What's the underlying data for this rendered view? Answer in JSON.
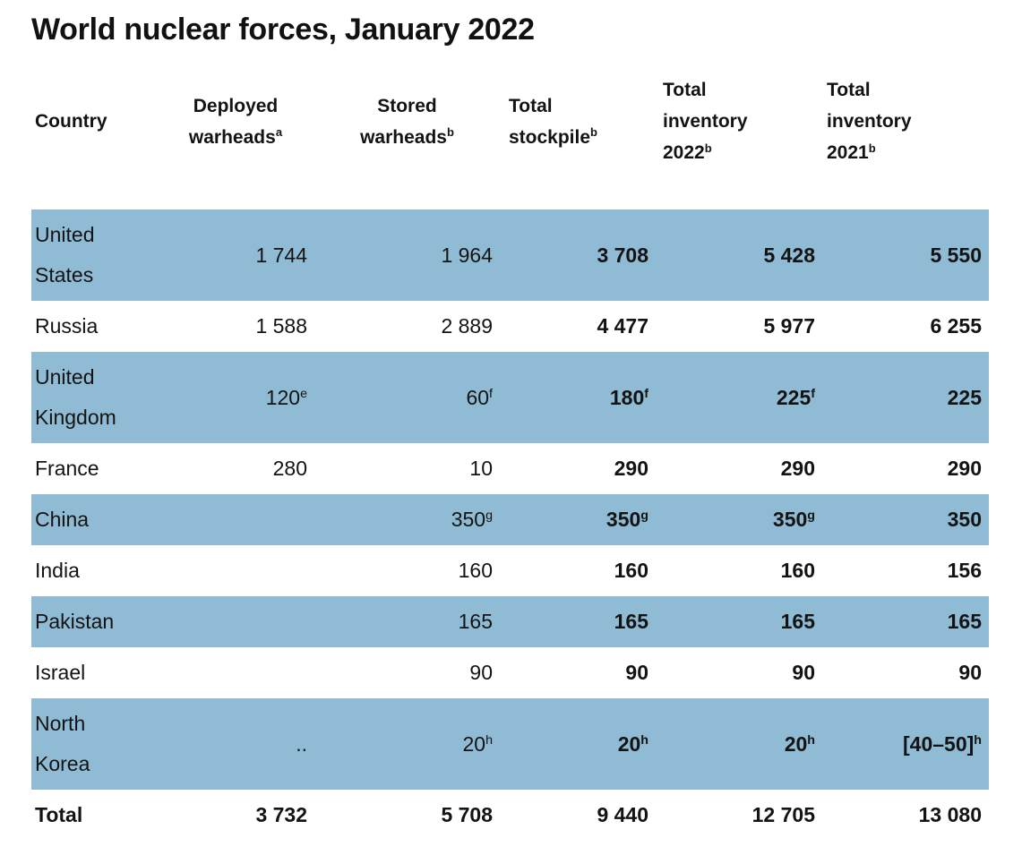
{
  "title": "World nuclear forces, January 2022",
  "colors": {
    "row_highlight": "#8fbcd4",
    "text": "#131313",
    "background": "#ffffff"
  },
  "table": {
    "columns": [
      "Country",
      "Deployed\nwarheads^a^",
      "Stored\nwarheads^b^",
      "Total\nstockpile^b^",
      "Total\ninventory\n2022^b^",
      "Total\ninventory\n2021^b^"
    ],
    "rows": [
      {
        "country": "United\nStates",
        "cells": [
          "1 744",
          "1 964",
          "3 708",
          "5 428",
          "5 550"
        ]
      },
      {
        "country": "Russia",
        "cells": [
          "1 588",
          "2 889",
          "4 477",
          "5 977",
          "6 255"
        ]
      },
      {
        "country": "United\nKingdom",
        "cells": [
          "120^e^",
          "60^f^",
          "180^f^",
          "225^f^",
          "225"
        ]
      },
      {
        "country": "France",
        "cells": [
          "280",
          "10",
          "290",
          "290",
          "290"
        ]
      },
      {
        "country": "China",
        "cells": [
          "",
          "350^g^",
          "350^g^",
          "350^g^",
          "350"
        ]
      },
      {
        "country": "India",
        "cells": [
          "",
          "160",
          "160",
          "160",
          "156"
        ]
      },
      {
        "country": "Pakistan",
        "cells": [
          "",
          "165",
          "165",
          "165",
          "165"
        ]
      },
      {
        "country": "Israel",
        "cells": [
          "",
          "90",
          "90",
          "90",
          "90"
        ]
      },
      {
        "country": "North\nKorea",
        "cells": [
          "..",
          "20^h^",
          "20^h^",
          "20^h^",
          "[40–50]^h^"
        ]
      },
      {
        "country": "Total",
        "cells": [
          "3 732",
          "5 708",
          "9 440",
          "12 705",
          "13 080"
        ],
        "is_total": true
      }
    ]
  },
  "chart_data": {
    "type": "table",
    "title": "World nuclear forces, January 2022",
    "columns": [
      "Country",
      "Deployed warheads (a)",
      "Stored warheads (b)",
      "Total stockpile (b)",
      "Total inventory 2022 (b)",
      "Total inventory 2021 (b)"
    ],
    "rows": [
      [
        "United States",
        "1 744",
        "1 964",
        "3 708",
        "5 428",
        "5 550"
      ],
      [
        "Russia",
        "1 588",
        "2 889",
        "4 477",
        "5 977",
        "6 255"
      ],
      [
        "United Kingdom",
        "120e",
        "60f",
        "180f",
        "225f",
        "225"
      ],
      [
        "France",
        "280",
        "10",
        "290",
        "290",
        "290"
      ],
      [
        "China",
        "",
        "350g",
        "350g",
        "350g",
        "350"
      ],
      [
        "India",
        "",
        "160",
        "160",
        "160",
        "156"
      ],
      [
        "Pakistan",
        "",
        "165",
        "165",
        "165",
        "165"
      ],
      [
        "Israel",
        "",
        "90",
        "90",
        "90",
        "90"
      ],
      [
        "North Korea",
        "..",
        "20h",
        "20h",
        "20h",
        "[40–50]h"
      ],
      [
        "Total",
        "3 732",
        "5 708",
        "9 440",
        "12 705",
        "13 080"
      ]
    ],
    "footnote_markers_visible": [
      "a",
      "b",
      "e",
      "f",
      "g",
      "h"
    ],
    "layout_hints": {
      "striped_rows": "odd data rows highlighted blue",
      "bold_columns": [
        "Total stockpile",
        "Total inventory 2022",
        "Total inventory 2021"
      ]
    }
  }
}
